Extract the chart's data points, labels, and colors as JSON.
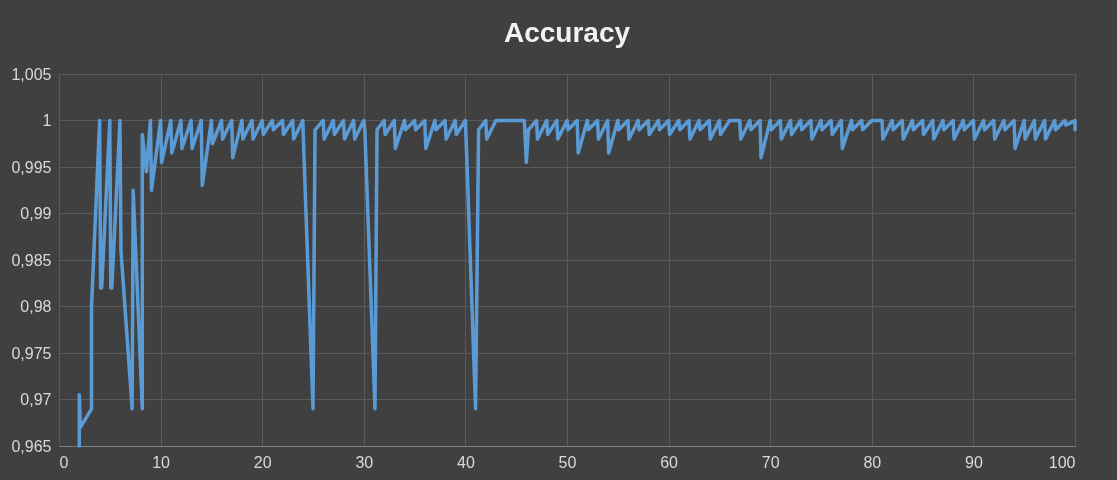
{
  "chart_data": {
    "type": "line",
    "title": "Accuracy",
    "xlim": [
      0,
      100
    ],
    "xticks": [
      0,
      10,
      20,
      30,
      40,
      50,
      60,
      70,
      80,
      90,
      100
    ],
    "ylim": [
      0.965,
      1.005
    ],
    "yticks": [
      {
        "value": 0.965,
        "label": "0,965"
      },
      {
        "value": 0.97,
        "label": "0,97"
      },
      {
        "value": 0.975,
        "label": "0,975"
      },
      {
        "value": 0.98,
        "label": "0,98"
      },
      {
        "value": 0.985,
        "label": "0,985"
      },
      {
        "value": 0.99,
        "label": "0,99"
      },
      {
        "value": 0.995,
        "label": "0,995"
      },
      1,
      {
        "value": 1.005,
        "label": "1,005"
      }
    ],
    "grid": true,
    "legend": false,
    "marker": "none",
    "line_style": "solid",
    "series": [
      {
        "color": "#5b9bd5",
        "x": [
          2,
          2,
          2.1,
          3.2,
          3.2,
          4,
          4.1,
          4.2,
          5,
          5.1,
          5.2,
          6,
          6.1,
          7.2,
          7.3,
          8.2,
          8.2,
          8.6,
          9,
          9.1,
          10,
          10.1,
          11,
          11.1,
          12,
          12.1,
          13,
          13.1,
          14,
          14.1,
          15,
          15.1,
          16,
          16.1,
          17,
          17.1,
          18,
          18.1,
          19,
          19.1,
          20,
          20.1,
          21,
          21.1,
          22,
          22.1,
          23,
          23.1,
          24,
          24.1,
          25,
          25.2,
          26,
          26.1,
          27,
          27.1,
          28,
          28.1,
          29,
          29.1,
          30,
          30.1,
          31.1,
          31.3,
          32,
          32.1,
          33,
          33.1,
          34,
          34.1,
          35,
          35.1,
          36,
          36.1,
          37,
          37.1,
          38,
          38.1,
          39,
          39.1,
          40,
          40.1,
          41,
          41.3,
          42,
          42.1,
          43,
          45.8,
          46,
          46.2,
          47,
          47.1,
          48,
          48.1,
          49,
          49.1,
          50,
          50.1,
          51,
          51.1,
          52,
          52.1,
          53,
          53.1,
          54,
          54.1,
          55,
          55.1,
          56,
          56.1,
          57,
          57.1,
          58,
          58.1,
          59,
          59.1,
          60,
          60.1,
          61,
          61.1,
          62,
          62.1,
          63,
          63.1,
          64,
          64.1,
          65,
          65.1,
          66,
          67,
          67.1,
          68,
          68.1,
          69,
          69.1,
          70,
          70.1,
          71,
          71.1,
          72,
          72.1,
          73,
          73.1,
          74,
          74.1,
          75,
          75.1,
          76,
          76.1,
          77,
          77.1,
          78,
          78.1,
          79,
          79.1,
          80,
          81,
          81.1,
          82,
          82.1,
          83,
          83.1,
          84,
          84.1,
          85,
          85.1,
          86,
          86.1,
          87,
          87.1,
          88,
          88.1,
          89,
          89.1,
          90,
          90.1,
          91,
          91.1,
          92,
          92.1,
          93,
          93.1,
          94,
          94.1,
          95,
          95.1,
          96,
          96.1,
          97,
          97.1,
          98,
          98.1,
          99,
          99.1,
          100,
          100
        ],
        "values": [
          0.965,
          0.9705,
          0.967,
          0.969,
          0.98,
          1.0,
          0.982,
          0.982,
          1.0,
          0.982,
          0.982,
          1.0,
          0.986,
          0.969,
          0.9925,
          0.969,
          0.9985,
          0.9945,
          1.0,
          0.9925,
          1.0,
          0.9955,
          1.0,
          0.9965,
          1.0,
          0.997,
          1.0,
          0.997,
          1.0,
          0.993,
          1.0,
          0.9975,
          1.0,
          0.998,
          1.0,
          0.996,
          1.0,
          0.998,
          1.0,
          0.998,
          1.0,
          0.9985,
          1.0,
          0.999,
          1.0,
          0.9985,
          1.0,
          0.998,
          1.0,
          0.9965,
          0.969,
          0.999,
          1.0,
          0.998,
          1.0,
          0.9985,
          1.0,
          0.998,
          1.0,
          0.998,
          1.0,
          0.999,
          0.969,
          0.999,
          1.0,
          0.9985,
          1.0,
          0.997,
          1.0,
          0.999,
          1.0,
          0.999,
          1.0,
          0.997,
          1.0,
          0.999,
          1.0,
          0.998,
          1.0,
          0.9985,
          1.0,
          0.997,
          0.969,
          0.999,
          1.0,
          0.998,
          1.0,
          1.0,
          0.9955,
          0.999,
          1.0,
          0.998,
          1.0,
          0.9985,
          1.0,
          0.998,
          1.0,
          0.999,
          1.0,
          0.9965,
          1.0,
          0.999,
          1.0,
          0.998,
          1.0,
          0.9965,
          1.0,
          0.999,
          1.0,
          0.998,
          1.0,
          0.999,
          1.0,
          0.9985,
          1.0,
          0.999,
          1.0,
          0.9985,
          1.0,
          0.999,
          1.0,
          0.998,
          1.0,
          0.999,
          1.0,
          0.998,
          1.0,
          0.9985,
          1.0,
          1.0,
          0.998,
          1.0,
          0.999,
          1.0,
          0.996,
          1.0,
          0.999,
          1.0,
          0.998,
          1.0,
          0.9985,
          1.0,
          0.999,
          1.0,
          0.998,
          1.0,
          0.999,
          1.0,
          0.9985,
          1.0,
          0.997,
          1.0,
          0.999,
          1.0,
          0.999,
          1.0,
          1.0,
          0.998,
          1.0,
          0.999,
          1.0,
          0.998,
          1.0,
          0.999,
          1.0,
          0.9985,
          1.0,
          0.998,
          1.0,
          0.999,
          1.0,
          0.998,
          1.0,
          0.999,
          1.0,
          0.998,
          1.0,
          0.999,
          1.0,
          0.998,
          1.0,
          0.999,
          1.0,
          0.997,
          1.0,
          0.998,
          1.0,
          0.998,
          1.0,
          0.998,
          1.0,
          0.999,
          1.0,
          0.9995,
          1.0,
          0.999
        ]
      }
    ]
  }
}
